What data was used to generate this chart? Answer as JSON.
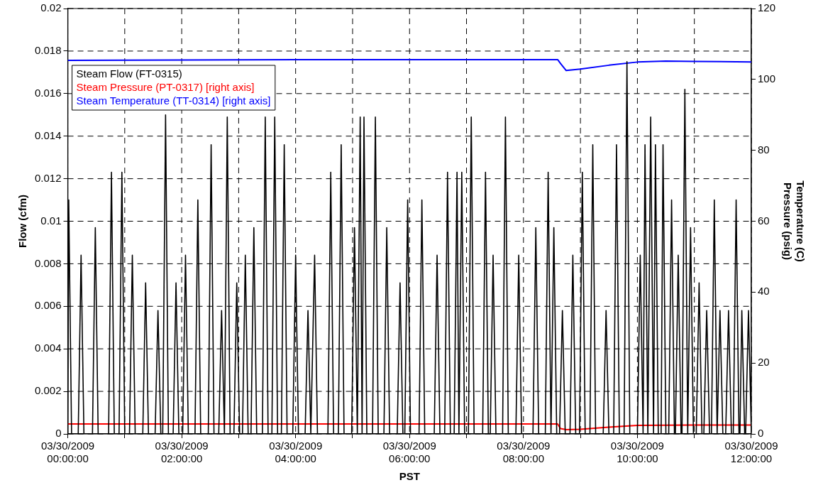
{
  "chart_data": {
    "type": "line",
    "xlabel": "PST",
    "ylabel": "Flow (cfm)",
    "y2label": "Temperature (C)\nPressure (psig)",
    "xlim": [
      "2009-03-30T00:00",
      "2009-03-30T12:00"
    ],
    "xticks": [
      {
        "value": "2009-03-30T00:00",
        "label": "03/30/2009\n00:00:00"
      },
      {
        "value": "2009-03-30T01:00",
        "label": null
      },
      {
        "value": "2009-03-30T02:00",
        "label": "03/30/2009\n02:00:00"
      },
      {
        "value": "2009-03-30T03:00",
        "label": null
      },
      {
        "value": "2009-03-30T04:00",
        "label": "03/30/2009\n04:00:00"
      },
      {
        "value": "2009-03-30T05:00",
        "label": null
      },
      {
        "value": "2009-03-30T06:00",
        "label": "03/30/2009\n06:00:00"
      },
      {
        "value": "2009-03-30T07:00",
        "label": null
      },
      {
        "value": "2009-03-30T08:00",
        "label": "03/30/2009\n08:00:00"
      },
      {
        "value": "2009-03-30T09:00",
        "label": null
      },
      {
        "value": "2009-03-30T10:00",
        "label": "03/30/2009\n10:00:00"
      },
      {
        "value": "2009-03-30T11:00",
        "label": null
      },
      {
        "value": "2009-03-30T12:00",
        "label": "03/30/2009\n12:00:00"
      }
    ],
    "ylim": [
      0,
      0.02
    ],
    "yticks": [
      0,
      0.002,
      0.004,
      0.006,
      0.008,
      0.01,
      0.012,
      0.014,
      0.016,
      0.018,
      0.02
    ],
    "y2lim": [
      0,
      120
    ],
    "y2ticks": [
      0,
      20,
      40,
      60,
      80,
      100,
      120
    ],
    "grid": true,
    "legend": "top left",
    "marker": "none",
    "line_style": "solid",
    "series": [
      {
        "name": "Steam Flow (FT-0315)",
        "color": "#000000",
        "x": [
          "2009-03-30T00:00",
          "2009-03-30T00:01",
          "2009-03-30T00:04",
          "2009-03-30T00:11",
          "2009-03-30T00:14",
          "2009-03-30T00:17",
          "2009-03-30T00:26",
          "2009-03-30T00:29",
          "2009-03-30T00:32",
          "2009-03-30T00:43",
          "2009-03-30T00:46",
          "2009-03-30T00:49",
          "2009-03-30T00:54",
          "2009-03-30T00:57",
          "2009-03-30T01:00",
          "2009-03-30T01:05",
          "2009-03-30T01:08",
          "2009-03-30T01:11",
          "2009-03-30T01:19",
          "2009-03-30T01:22",
          "2009-03-30T01:25",
          "2009-03-30T01:32",
          "2009-03-30T01:35",
          "2009-03-30T01:38",
          "2009-03-30T01:40",
          "2009-03-30T01:43",
          "2009-03-30T01:46",
          "2009-03-30T01:51",
          "2009-03-30T01:54",
          "2009-03-30T01:57",
          "2009-03-30T02:01",
          "2009-03-30T02:04",
          "2009-03-30T02:07",
          "2009-03-30T02:14",
          "2009-03-30T02:17",
          "2009-03-30T02:20",
          "2009-03-30T02:28",
          "2009-03-30T02:31",
          "2009-03-30T02:34",
          "2009-03-30T02:39",
          "2009-03-30T02:42",
          "2009-03-30T02:45",
          "2009-03-30T02:48",
          "2009-03-30T02:51",
          "2009-03-30T02:55",
          "2009-03-30T02:58",
          "2009-03-30T03:01",
          "2009-03-30T03:04",
          "2009-03-30T03:07",
          "2009-03-30T03:10",
          "2009-03-30T03:13",
          "2009-03-30T03:16",
          "2009-03-30T03:19",
          "2009-03-30T03:25",
          "2009-03-30T03:28",
          "2009-03-30T03:31",
          "2009-03-30T03:35",
          "2009-03-30T03:38",
          "2009-03-30T03:41",
          "2009-03-30T03:45",
          "2009-03-30T03:48",
          "2009-03-30T03:51",
          "2009-03-30T03:57",
          "2009-03-30T04:00",
          "2009-03-30T04:03",
          "2009-03-30T04:10",
          "2009-03-30T04:13",
          "2009-03-30T04:16",
          "2009-03-30T04:20",
          "2009-03-30T04:23",
          "2009-03-30T04:34",
          "2009-03-30T04:37",
          "2009-03-30T04:40",
          "2009-03-30T04:45",
          "2009-03-30T04:48",
          "2009-03-30T04:51",
          "2009-03-30T04:59",
          "2009-03-30T05:02",
          "2009-03-30T05:05",
          "2009-03-30T05:08",
          "2009-03-30T05:10",
          "2009-03-30T05:12",
          "2009-03-30T05:15",
          "2009-03-30T05:21",
          "2009-03-30T05:24",
          "2009-03-30T05:27",
          "2009-03-30T05:33",
          "2009-03-30T05:36",
          "2009-03-30T05:39",
          "2009-03-30T05:47",
          "2009-03-30T05:50",
          "2009-03-30T05:53",
          "2009-03-30T05:55",
          "2009-03-30T05:58",
          "2009-03-30T06:01",
          "2009-03-30T06:10",
          "2009-03-30T06:13",
          "2009-03-30T06:16",
          "2009-03-30T06:26",
          "2009-03-30T06:29",
          "2009-03-30T06:32",
          "2009-03-30T06:37",
          "2009-03-30T06:40",
          "2009-03-30T06:43",
          "2009-03-30T06:47",
          "2009-03-30T06:50",
          "2009-03-30T06:52",
          "2009-03-30T06:55",
          "2009-03-30T06:58",
          "2009-03-30T07:02",
          "2009-03-30T07:05",
          "2009-03-30T07:08",
          "2009-03-30T07:17",
          "2009-03-30T07:20",
          "2009-03-30T07:23",
          "2009-03-30T07:25",
          "2009-03-30T07:28",
          "2009-03-30T07:31",
          "2009-03-30T07:38",
          "2009-03-30T07:41",
          "2009-03-30T07:44",
          "2009-03-30T07:52",
          "2009-03-30T07:55",
          "2009-03-30T07:58",
          "2009-03-30T08:10",
          "2009-03-30T08:13",
          "2009-03-30T08:16",
          "2009-03-30T08:23",
          "2009-03-30T08:26",
          "2009-03-30T08:29",
          "2009-03-30T08:32",
          "2009-03-30T08:35",
          "2009-03-30T08:38",
          "2009-03-30T08:41",
          "2009-03-30T08:44",
          "2009-03-30T08:49",
          "2009-03-30T08:52",
          "2009-03-30T08:55",
          "2009-03-30T08:59",
          "2009-03-30T09:02",
          "2009-03-30T09:05",
          "2009-03-30T09:10",
          "2009-03-30T09:13",
          "2009-03-30T09:16",
          "2009-03-30T09:24",
          "2009-03-30T09:27",
          "2009-03-30T09:30",
          "2009-03-30T09:35",
          "2009-03-30T09:38",
          "2009-03-30T09:41",
          "2009-03-30T09:46",
          "2009-03-30T09:49",
          "2009-03-30T09:52",
          "2009-03-30T10:00",
          "2009-03-30T10:03",
          "2009-03-30T10:06",
          "2009-03-30T10:08",
          "2009-03-30T10:11",
          "2009-03-30T10:14",
          "2009-03-30T10:17",
          "2009-03-30T10:19",
          "2009-03-30T10:22",
          "2009-03-30T10:25",
          "2009-03-30T10:27",
          "2009-03-30T10:30",
          "2009-03-30T10:33",
          "2009-03-30T10:36",
          "2009-03-30T10:39",
          "2009-03-30T10:40",
          "2009-03-30T10:43",
          "2009-03-30T10:46",
          "2009-03-30T10:47",
          "2009-03-30T10:50",
          "2009-03-30T10:53",
          "2009-03-30T10:56",
          "2009-03-30T10:59",
          "2009-03-30T11:02",
          "2009-03-30T11:05",
          "2009-03-30T11:08",
          "2009-03-30T11:10",
          "2009-03-30T11:13",
          "2009-03-30T11:16",
          "2009-03-30T11:18",
          "2009-03-30T11:21",
          "2009-03-30T11:24",
          "2009-03-30T11:27",
          "2009-03-30T11:30",
          "2009-03-30T11:33",
          "2009-03-30T11:36",
          "2009-03-30T11:39",
          "2009-03-30T11:41",
          "2009-03-30T11:44",
          "2009-03-30T11:47",
          "2009-03-30T11:48",
          "2009-03-30T11:50",
          "2009-03-30T11:53",
          "2009-03-30T11:54",
          "2009-03-30T11:57",
          "2009-03-30T12:00"
        ],
        "values": [
          0,
          0.011,
          0,
          0,
          0.0084,
          0,
          0,
          0.0097,
          0,
          0,
          0.0123,
          0,
          0,
          0.0123,
          0,
          0,
          0.0084,
          0,
          0,
          0.0071,
          0,
          0,
          0.0058,
          0,
          0,
          0.015,
          0,
          0,
          0.0071,
          0,
          0,
          0.0084,
          0,
          0,
          0.011,
          0,
          0,
          0.0136,
          0,
          0,
          0.0058,
          0,
          0.0149,
          0,
          0,
          0.0071,
          0,
          0,
          0.0084,
          0,
          0,
          0.0097,
          0,
          0,
          0.0149,
          0,
          0,
          0.0149,
          0,
          0,
          0.0136,
          0,
          0,
          0.0084,
          0,
          0,
          0.0058,
          0,
          0.0084,
          0,
          0,
          0.0123,
          0,
          0,
          0.0136,
          0,
          0,
          0.0097,
          0,
          0.0149,
          0,
          0.0149,
          0,
          0,
          0.0149,
          0,
          0,
          0.0097,
          0,
          0,
          0.0071,
          0,
          0,
          0.011,
          0,
          0,
          0.011,
          0,
          0,
          0.0084,
          0,
          0,
          0.0123,
          0,
          0,
          0.0123,
          0,
          0.0123,
          0,
          0,
          0.0149,
          0,
          0,
          0.0123,
          0,
          0,
          0.0084,
          0,
          0,
          0.0149,
          0,
          0,
          0.0084,
          0,
          0,
          0.0097,
          0,
          0,
          0.0123,
          0,
          0.0097,
          0,
          0,
          0.0058,
          0,
          0,
          0.0084,
          0,
          0,
          0.0123,
          0,
          0,
          0.0136,
          0,
          0,
          0.0058,
          0,
          0,
          0.0136,
          0,
          0,
          0.0175,
          0,
          0,
          0.0084,
          0,
          0.0136,
          0,
          0.0149,
          0,
          0.0136,
          0,
          0,
          0.0136,
          0,
          0,
          0.011,
          0,
          0,
          0.0084,
          0,
          0,
          0.0162,
          0,
          0.0097,
          0,
          0,
          0.0071,
          0,
          0,
          0.0058,
          0,
          0,
          0.011,
          0,
          0.0058,
          0,
          0,
          0.0058,
          0,
          0,
          0.011,
          0,
          0,
          0.0058,
          0,
          0,
          0.0058,
          0
        ]
      },
      {
        "name": "Steam Pressure (PT-0317) [right axis]",
        "color": "#ff0000",
        "axis": "y2",
        "x": [
          "2009-03-30T00:00",
          "2009-03-30T02:00",
          "2009-03-30T04:00",
          "2009-03-30T06:00",
          "2009-03-30T08:00",
          "2009-03-30T08:36",
          "2009-03-30T08:39",
          "2009-03-30T08:45",
          "2009-03-30T09:00",
          "2009-03-30T09:30",
          "2009-03-30T10:00",
          "2009-03-30T11:00",
          "2009-03-30T12:00"
        ],
        "values": [
          2.8,
          2.8,
          2.8,
          2.8,
          2.8,
          2.8,
          1.5,
          1.2,
          1.3,
          1.9,
          2.4,
          2.5,
          2.5
        ]
      },
      {
        "name": "Steam Temperature (TT-0314) [right axis]",
        "color": "#0000ff",
        "axis": "y2",
        "x": [
          "2009-03-30T00:00",
          "2009-03-30T02:00",
          "2009-03-30T04:00",
          "2009-03-30T06:00",
          "2009-03-30T08:00",
          "2009-03-30T08:36",
          "2009-03-30T08:39",
          "2009-03-30T08:45",
          "2009-03-30T09:00",
          "2009-03-30T09:30",
          "2009-03-30T10:00",
          "2009-03-30T10:30",
          "2009-03-30T11:00",
          "2009-03-30T12:00"
        ],
        "values": [
          105.4,
          105.5,
          105.6,
          105.6,
          105.6,
          105.6,
          104.5,
          102.5,
          102.9,
          104.0,
          104.9,
          105.2,
          105.1,
          104.9
        ]
      }
    ]
  }
}
